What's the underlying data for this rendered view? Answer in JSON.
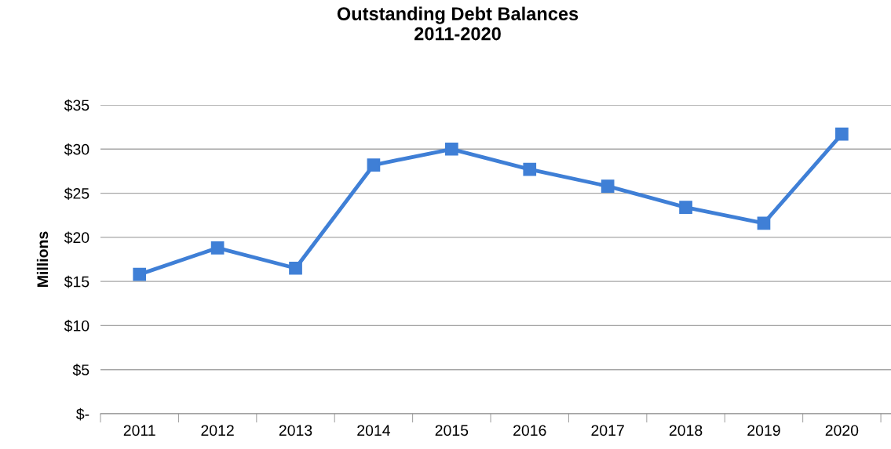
{
  "chart_data": {
    "type": "line",
    "title": "Outstanding Debt Balances\n2011-2020",
    "ylabel": "Millions",
    "categories": [
      "2011",
      "2012",
      "2013",
      "2014",
      "2015",
      "2016",
      "2017",
      "2018",
      "2019",
      "2020"
    ],
    "series": [
      {
        "color": "#3f7fd6",
        "values": [
          15.8,
          18.8,
          16.5,
          28.2,
          30.0,
          27.7,
          25.8,
          23.4,
          21.6,
          31.7
        ]
      }
    ],
    "ylim": [
      0,
      35
    ],
    "yticks": [
      {
        "value": 0,
        "label": "$-"
      },
      {
        "value": 5,
        "label": "$5"
      },
      {
        "value": 10,
        "label": "$10"
      },
      {
        "value": 15,
        "label": "$15"
      },
      {
        "value": 20,
        "label": "$20"
      },
      {
        "value": 25,
        "label": "$25"
      },
      {
        "value": 30,
        "label": "$30"
      },
      {
        "value": 35,
        "label": "$35"
      }
    ],
    "grid": "y",
    "marker": "square",
    "line_style": "solid",
    "legend": false
  }
}
